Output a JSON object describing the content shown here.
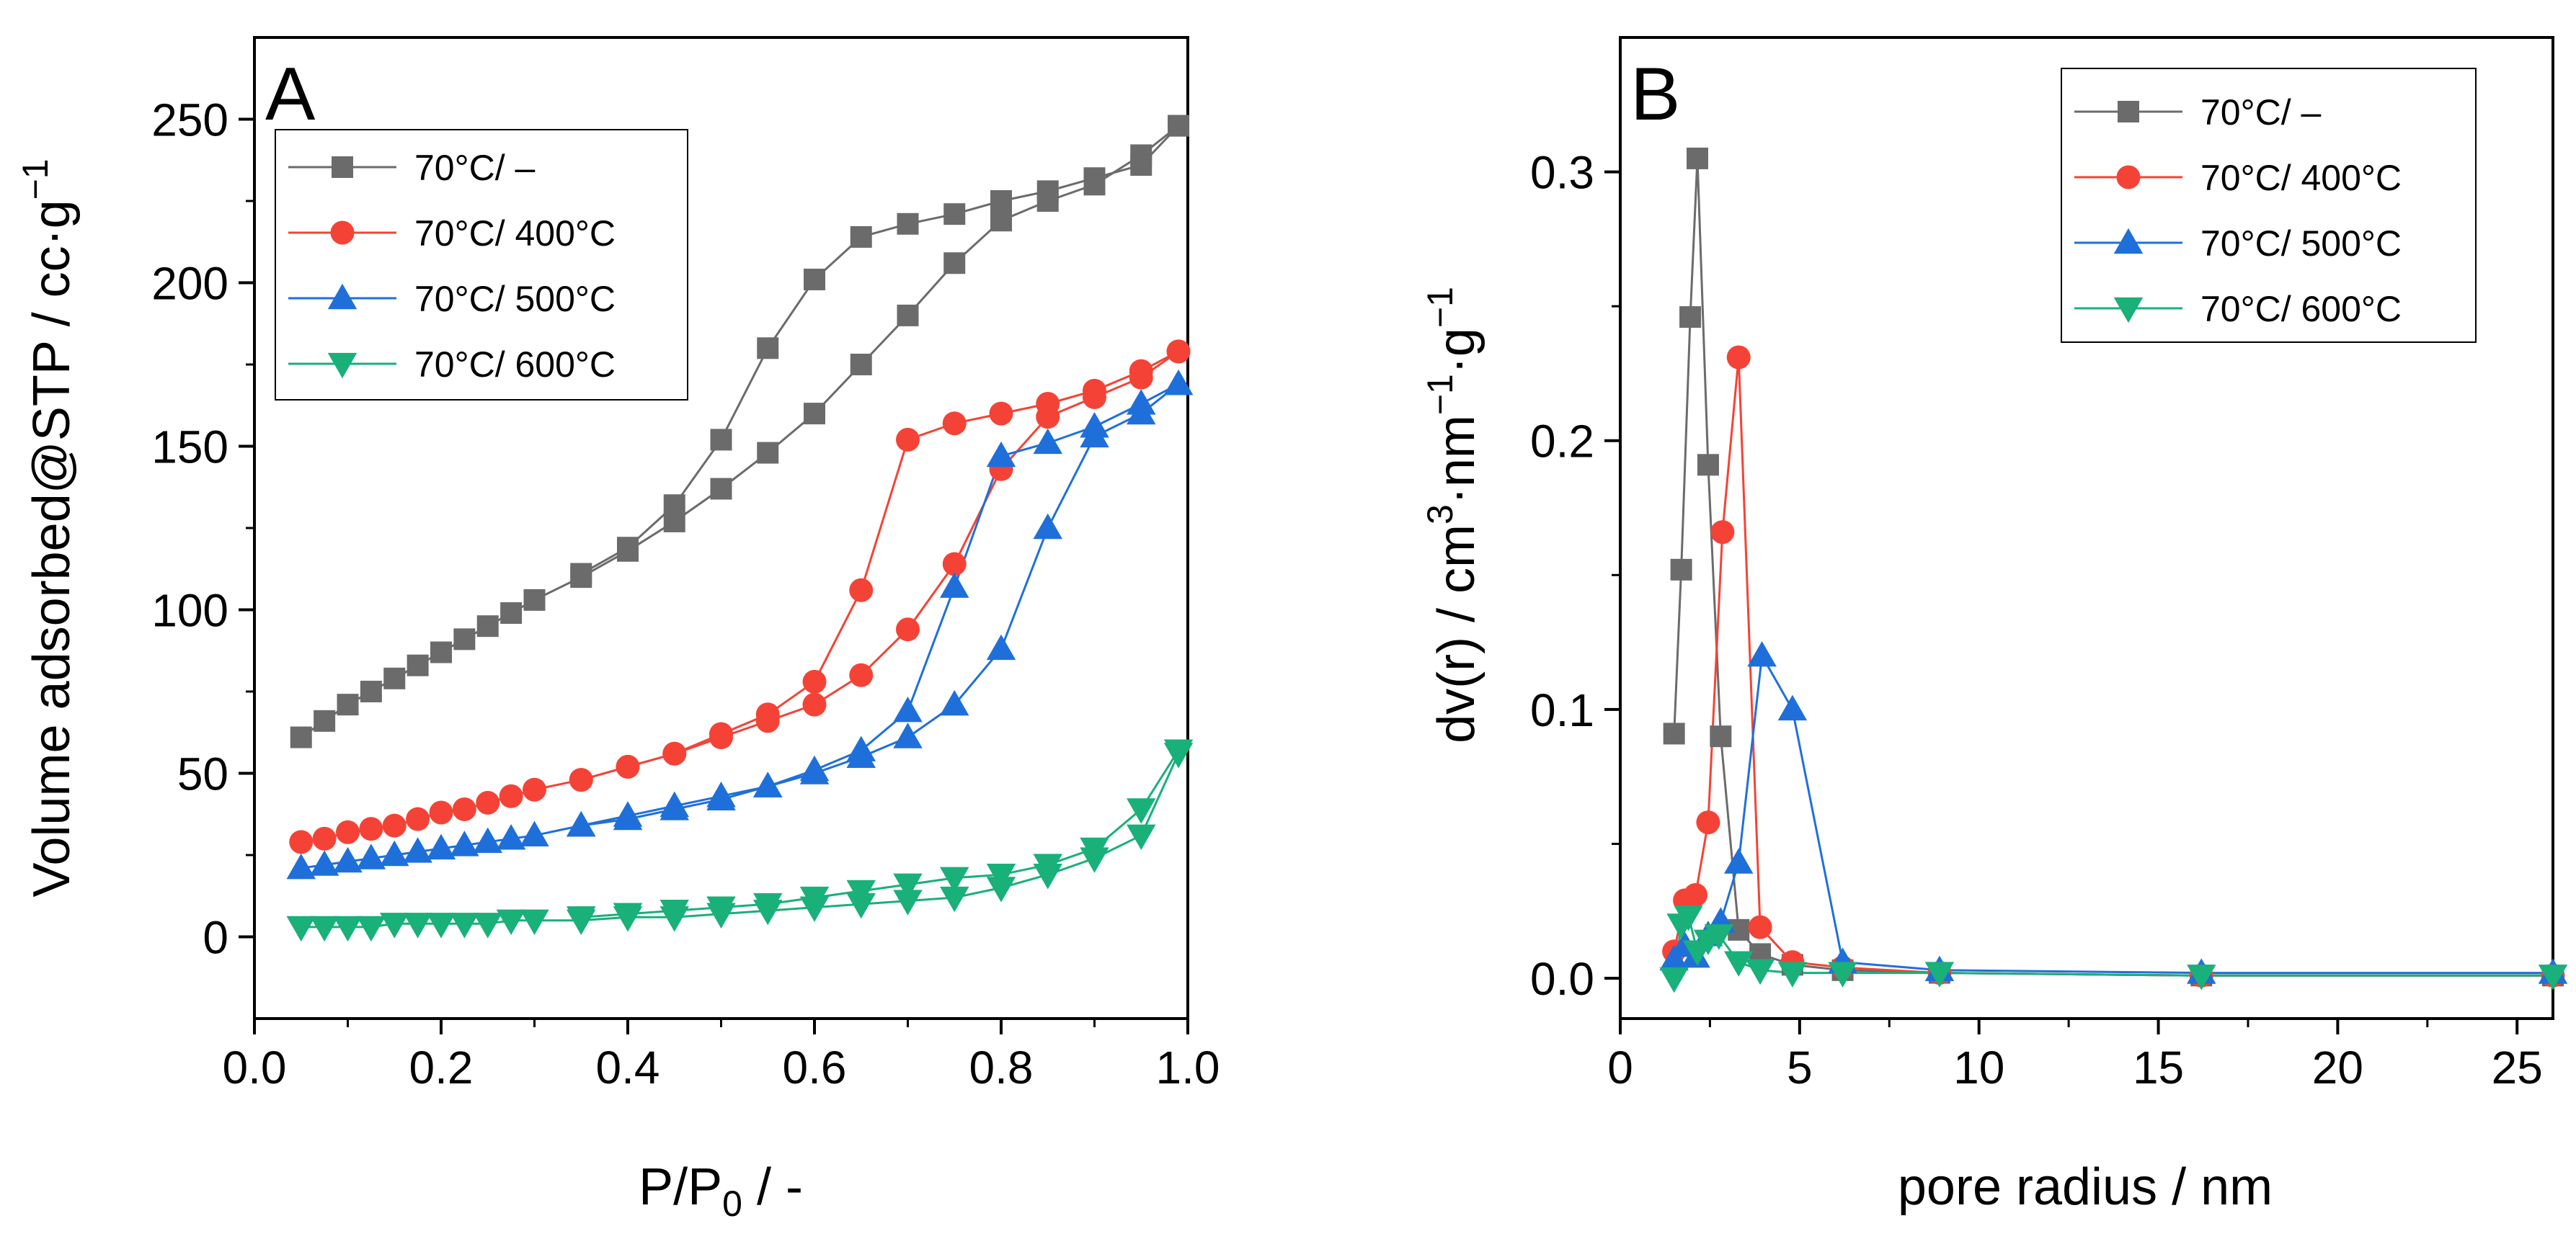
{
  "chart_data": [
    {
      "panel": "A",
      "type": "line",
      "xlabel_main": "P/P",
      "xlabel_sub": "0",
      "xlabel_tail": " / -",
      "ylabel_main": "Volume adsorbed@STP / cc·g",
      "ylabel_sup": "−1",
      "xlim": [
        0.0,
        1.0
      ],
      "ylim": [
        -25,
        275
      ],
      "xticks": [
        0.0,
        0.2,
        0.4,
        0.6,
        0.8,
        1.0
      ],
      "xtick_labels": [
        "0.0",
        "0.2",
        "0.4",
        "0.6",
        "0.8",
        "1.0"
      ],
      "yticks": [
        0,
        50,
        100,
        150,
        200,
        250
      ],
      "ytick_labels": [
        "0",
        "50",
        "100",
        "150",
        "200",
        "250"
      ],
      "legend_position": "top-left",
      "series": [
        {
          "name": "70°C/ –",
          "marker": "square",
          "color": "#6b6b6b",
          "adsorption": [
            [
              0.05,
              61
            ],
            [
              0.075,
              66
            ],
            [
              0.1,
              71
            ],
            [
              0.125,
              75
            ],
            [
              0.15,
              79
            ],
            [
              0.175,
              83
            ],
            [
              0.2,
              87
            ],
            [
              0.225,
              91
            ],
            [
              0.25,
              95
            ],
            [
              0.275,
              99
            ],
            [
              0.3,
              103
            ],
            [
              0.35,
              110
            ],
            [
              0.4,
              118
            ],
            [
              0.45,
              127
            ],
            [
              0.5,
              137
            ],
            [
              0.55,
              148
            ],
            [
              0.6,
              160
            ],
            [
              0.65,
              175
            ],
            [
              0.7,
              190
            ],
            [
              0.75,
              206
            ],
            [
              0.8,
              219
            ],
            [
              0.85,
              225
            ],
            [
              0.9,
              230
            ],
            [
              0.95,
              239
            ],
            [
              0.99,
              248
            ]
          ],
          "desorption": [
            [
              0.99,
              248
            ],
            [
              0.95,
              236
            ],
            [
              0.9,
              232
            ],
            [
              0.85,
              228
            ],
            [
              0.8,
              225
            ],
            [
              0.75,
              221
            ],
            [
              0.7,
              218
            ],
            [
              0.65,
              214
            ],
            [
              0.6,
              201
            ],
            [
              0.55,
              180
            ],
            [
              0.5,
              152
            ],
            [
              0.45,
              132
            ],
            [
              0.4,
              119
            ],
            [
              0.35,
              111
            ]
          ]
        },
        {
          "name": "70°C/ 400°C",
          "marker": "circle",
          "color": "#f44336",
          "adsorption": [
            [
              0.05,
              29
            ],
            [
              0.075,
              30
            ],
            [
              0.1,
              32
            ],
            [
              0.125,
              33
            ],
            [
              0.15,
              34
            ],
            [
              0.175,
              36
            ],
            [
              0.2,
              38
            ],
            [
              0.225,
              39
            ],
            [
              0.25,
              41
            ],
            [
              0.275,
              43
            ],
            [
              0.3,
              45
            ],
            [
              0.35,
              48
            ],
            [
              0.4,
              52
            ],
            [
              0.45,
              56
            ],
            [
              0.5,
              61
            ],
            [
              0.55,
              66
            ],
            [
              0.6,
              71
            ],
            [
              0.65,
              80
            ],
            [
              0.7,
              94
            ],
            [
              0.75,
              114
            ],
            [
              0.8,
              143
            ],
            [
              0.85,
              159
            ],
            [
              0.9,
              165
            ],
            [
              0.95,
              171
            ],
            [
              0.99,
              179
            ]
          ],
          "desorption": [
            [
              0.99,
              179
            ],
            [
              0.95,
              173
            ],
            [
              0.9,
              167
            ],
            [
              0.85,
              163
            ],
            [
              0.8,
              160
            ],
            [
              0.75,
              157
            ],
            [
              0.7,
              152
            ],
            [
              0.65,
              106
            ],
            [
              0.6,
              78
            ],
            [
              0.55,
              68
            ],
            [
              0.5,
              62
            ],
            [
              0.45,
              56
            ],
            [
              0.4,
              52
            ],
            [
              0.35,
              48
            ]
          ]
        },
        {
          "name": "70°C/ 500°C",
          "marker": "triangle-up",
          "color": "#1f6fdb",
          "adsorption": [
            [
              0.05,
              21
            ],
            [
              0.075,
              22
            ],
            [
              0.1,
              23
            ],
            [
              0.125,
              24
            ],
            [
              0.15,
              25
            ],
            [
              0.175,
              26
            ],
            [
              0.2,
              27
            ],
            [
              0.225,
              28
            ],
            [
              0.25,
              29
            ],
            [
              0.275,
              30
            ],
            [
              0.3,
              31
            ],
            [
              0.35,
              34
            ],
            [
              0.4,
              36
            ],
            [
              0.45,
              39
            ],
            [
              0.5,
              42
            ],
            [
              0.55,
              46
            ],
            [
              0.6,
              50
            ],
            [
              0.65,
              55
            ],
            [
              0.7,
              61
            ],
            [
              0.75,
              71
            ],
            [
              0.8,
              88
            ],
            [
              0.85,
              125
            ],
            [
              0.9,
              153
            ],
            [
              0.95,
              160
            ],
            [
              0.99,
              169
            ]
          ],
          "desorption": [
            [
              0.99,
              169
            ],
            [
              0.95,
              163
            ],
            [
              0.9,
              156
            ],
            [
              0.85,
              151
            ],
            [
              0.8,
              147
            ],
            [
              0.75,
              107
            ],
            [
              0.7,
              69
            ],
            [
              0.65,
              57
            ],
            [
              0.6,
              51
            ],
            [
              0.55,
              46
            ],
            [
              0.5,
              43
            ],
            [
              0.45,
              40
            ],
            [
              0.4,
              37
            ],
            [
              0.35,
              34
            ]
          ]
        },
        {
          "name": "70°C/ 600°C",
          "marker": "triangle-down",
          "color": "#19b07a",
          "adsorption": [
            [
              0.05,
              3
            ],
            [
              0.075,
              3
            ],
            [
              0.1,
              3
            ],
            [
              0.125,
              3
            ],
            [
              0.15,
              4
            ],
            [
              0.175,
              4
            ],
            [
              0.2,
              4
            ],
            [
              0.225,
              4
            ],
            [
              0.25,
              4
            ],
            [
              0.275,
              5
            ],
            [
              0.3,
              5
            ],
            [
              0.35,
              5
            ],
            [
              0.4,
              6
            ],
            [
              0.45,
              6
            ],
            [
              0.5,
              7
            ],
            [
              0.55,
              8
            ],
            [
              0.6,
              9
            ],
            [
              0.65,
              10
            ],
            [
              0.7,
              11
            ],
            [
              0.75,
              12
            ],
            [
              0.8,
              15
            ],
            [
              0.85,
              19
            ],
            [
              0.9,
              24
            ],
            [
              0.95,
              31
            ],
            [
              0.99,
              56
            ]
          ],
          "desorption": [
            [
              0.99,
              57
            ],
            [
              0.95,
              39
            ],
            [
              0.9,
              27
            ],
            [
              0.85,
              22
            ],
            [
              0.8,
              19
            ],
            [
              0.75,
              18
            ],
            [
              0.7,
              16
            ],
            [
              0.65,
              14
            ],
            [
              0.6,
              12
            ],
            [
              0.55,
              10
            ],
            [
              0.5,
              9
            ],
            [
              0.45,
              8
            ],
            [
              0.4,
              7
            ],
            [
              0.35,
              6
            ]
          ]
        }
      ]
    },
    {
      "panel": "B",
      "type": "line",
      "xlabel_main": "pore radius / nm",
      "ylabel_main": "dv(r) / cm",
      "ylabel_sup1": "3",
      "ylabel_mid": "·nm",
      "ylabel_sup2": "−1",
      "ylabel_tail": "·g",
      "ylabel_sup3": "−1",
      "xlim": [
        0,
        26
      ],
      "ylim": [
        -0.015,
        0.35
      ],
      "xticks": [
        0,
        5,
        10,
        15,
        20,
        25
      ],
      "xtick_labels": [
        "0",
        "5",
        "10",
        "15",
        "20",
        "25"
      ],
      "yticks": [
        0.0,
        0.1,
        0.2,
        0.3
      ],
      "ytick_labels": [
        "0.0",
        "0.1",
        "0.2",
        "0.3"
      ],
      "legend_position": "top-right",
      "series": [
        {
          "name": "70°C/ –",
          "marker": "square",
          "color": "#6b6b6b",
          "points": [
            [
              1.5,
              0.091
            ],
            [
              1.7,
              0.152
            ],
            [
              1.95,
              0.246
            ],
            [
              2.15,
              0.305
            ],
            [
              2.45,
              0.191
            ],
            [
              2.8,
              0.09
            ],
            [
              3.3,
              0.018
            ],
            [
              3.9,
              0.009
            ],
            [
              4.8,
              0.005
            ],
            [
              6.2,
              0.003
            ],
            [
              8.9,
              0.002
            ],
            [
              16.2,
              0.001
            ],
            [
              26,
              0.001
            ]
          ]
        },
        {
          "name": "70°C/ 400°C",
          "marker": "circle",
          "color": "#f44336",
          "points": [
            [
              1.5,
              0.01
            ],
            [
              1.8,
              0.029
            ],
            [
              2.1,
              0.031
            ],
            [
              2.45,
              0.058
            ],
            [
              2.85,
              0.166
            ],
            [
              3.3,
              0.231
            ],
            [
              3.9,
              0.019
            ],
            [
              4.8,
              0.006
            ],
            [
              6.2,
              0.004
            ],
            [
              8.9,
              0.002
            ],
            [
              16.2,
              0.001
            ],
            [
              26,
              0.001
            ]
          ]
        },
        {
          "name": "70°C/ 500°C",
          "marker": "triangle-up",
          "color": "#1f6fdb",
          "points": [
            [
              1.5,
              0.007
            ],
            [
              1.8,
              0.012
            ],
            [
              2.1,
              0.008
            ],
            [
              2.45,
              0.016
            ],
            [
              2.8,
              0.021
            ],
            [
              3.3,
              0.043
            ],
            [
              3.95,
              0.12
            ],
            [
              4.8,
              0.1
            ],
            [
              6.2,
              0.006
            ],
            [
              8.9,
              0.003
            ],
            [
              16.2,
              0.002
            ],
            [
              26,
              0.002
            ]
          ]
        },
        {
          "name": "70°C/ 600°C",
          "marker": "triangle-down",
          "color": "#19b07a",
          "points": [
            [
              1.5,
              0.0
            ],
            [
              1.7,
              0.02
            ],
            [
              1.9,
              0.023
            ],
            [
              2.15,
              0.01
            ],
            [
              2.45,
              0.014
            ],
            [
              2.75,
              0.016
            ],
            [
              3.3,
              0.006
            ],
            [
              3.9,
              0.003
            ],
            [
              4.8,
              0.002
            ],
            [
              6.2,
              0.002
            ],
            [
              8.9,
              0.002
            ],
            [
              16.2,
              0.001
            ],
            [
              26,
              0.001
            ]
          ]
        }
      ]
    }
  ]
}
